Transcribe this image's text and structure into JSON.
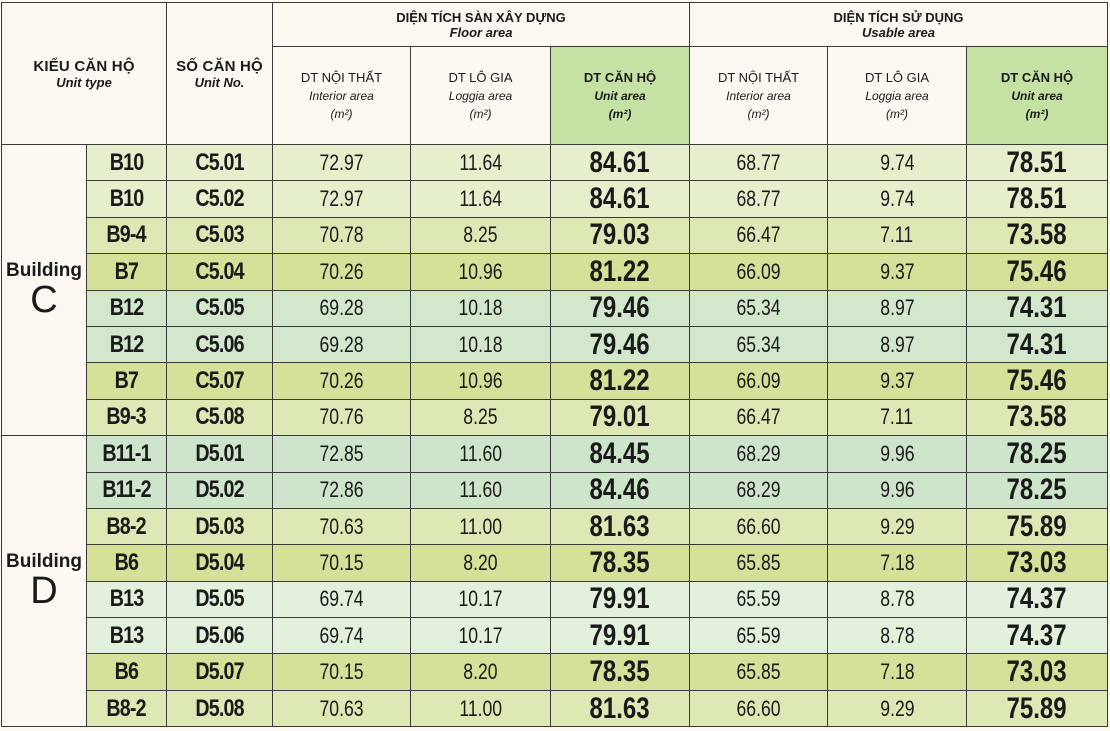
{
  "header": {
    "unit_type": "KIỂU CĂN HỘ",
    "unit_type_en": "Unit type",
    "unit_no": "SỐ CĂN HỘ",
    "unit_no_en": "Unit No.",
    "floor_group": "DIỆN TÍCH SÀN XÂY DỰNG",
    "floor_group_en": "Floor area",
    "usable_group": "DIỆN TÍCH SỬ DỤNG",
    "usable_group_en": "Usable area",
    "interior": "DT NỘI THẤT",
    "interior_en": "Interior area",
    "loggia": "DT LÔ GIA",
    "loggia_en": "Loggia area",
    "unit": "DT CĂN HỘ",
    "unit_en": "Unit area",
    "unit_m2": "(m²)"
  },
  "buildings": [
    {
      "word": "Building",
      "letter": "C",
      "rows": [
        {
          "type": "B10",
          "no": "C5.01",
          "fi": "72.97",
          "fl": "11.64",
          "fu": "84.61",
          "ui": "68.77",
          "ul": "9.74",
          "uu": "78.51"
        },
        {
          "type": "B10",
          "no": "C5.02",
          "fi": "72.97",
          "fl": "11.64",
          "fu": "84.61",
          "ui": "68.77",
          "ul": "9.74",
          "uu": "78.51"
        },
        {
          "type": "B9-4",
          "no": "C5.03",
          "fi": "70.78",
          "fl": "8.25",
          "fu": "79.03",
          "ui": "66.47",
          "ul": "7.11",
          "uu": "73.58"
        },
        {
          "type": "B7",
          "no": "C5.04",
          "fi": "70.26",
          "fl": "10.96",
          "fu": "81.22",
          "ui": "66.09",
          "ul": "9.37",
          "uu": "75.46"
        },
        {
          "type": "B12",
          "no": "C5.05",
          "fi": "69.28",
          "fl": "10.18",
          "fu": "79.46",
          "ui": "65.34",
          "ul": "8.97",
          "uu": "74.31"
        },
        {
          "type": "B12",
          "no": "C5.06",
          "fi": "69.28",
          "fl": "10.18",
          "fu": "79.46",
          "ui": "65.34",
          "ul": "8.97",
          "uu": "74.31"
        },
        {
          "type": "B7",
          "no": "C5.07",
          "fi": "70.26",
          "fl": "10.96",
          "fu": "81.22",
          "ui": "66.09",
          "ul": "9.37",
          "uu": "75.46"
        },
        {
          "type": "B9-3",
          "no": "C5.08",
          "fi": "70.76",
          "fl": "8.25",
          "fu": "79.01",
          "ui": "66.47",
          "ul": "7.11",
          "uu": "73.58"
        }
      ]
    },
    {
      "word": "Building",
      "letter": "D",
      "rows": [
        {
          "type": "B11-1",
          "no": "D5.01",
          "fi": "72.85",
          "fl": "11.60",
          "fu": "84.45",
          "ui": "68.29",
          "ul": "9.96",
          "uu": "78.25"
        },
        {
          "type": "B11-2",
          "no": "D5.02",
          "fi": "72.86",
          "fl": "11.60",
          "fu": "84.46",
          "ui": "68.29",
          "ul": "9.96",
          "uu": "78.25"
        },
        {
          "type": "B8-2",
          "no": "D5.03",
          "fi": "70.63",
          "fl": "11.00",
          "fu": "81.63",
          "ui": "66.60",
          "ul": "9.29",
          "uu": "75.89"
        },
        {
          "type": "B6",
          "no": "D5.04",
          "fi": "70.15",
          "fl": "8.20",
          "fu": "78.35",
          "ui": "65.85",
          "ul": "7.18",
          "uu": "73.03"
        },
        {
          "type": "B13",
          "no": "D5.05",
          "fi": "69.74",
          "fl": "10.17",
          "fu": "79.91",
          "ui": "65.59",
          "ul": "8.78",
          "uu": "74.37"
        },
        {
          "type": "B13",
          "no": "D5.06",
          "fi": "69.74",
          "fl": "10.17",
          "fu": "79.91",
          "ui": "65.59",
          "ul": "8.78",
          "uu": "74.37"
        },
        {
          "type": "B6",
          "no": "D5.07",
          "fi": "70.15",
          "fl": "8.20",
          "fu": "78.35",
          "ui": "65.85",
          "ul": "7.18",
          "uu": "73.03"
        },
        {
          "type": "B8-2",
          "no": "D5.08",
          "fi": "70.63",
          "fl": "11.00",
          "fu": "81.63",
          "ui": "66.60",
          "ul": "9.29",
          "uu": "75.89"
        }
      ]
    }
  ],
  "colors": {
    "header_bg": "#fdf9f2",
    "unit_header_bg": "#c6e1a4",
    "row_light": "#e5efcb",
    "row_mid": "#dde9b4",
    "row_olive": "#d5e098",
    "row_teal": "#d3e7cd",
    "row_pale": "#e2f0dc",
    "border": "#3a3a3a"
  }
}
